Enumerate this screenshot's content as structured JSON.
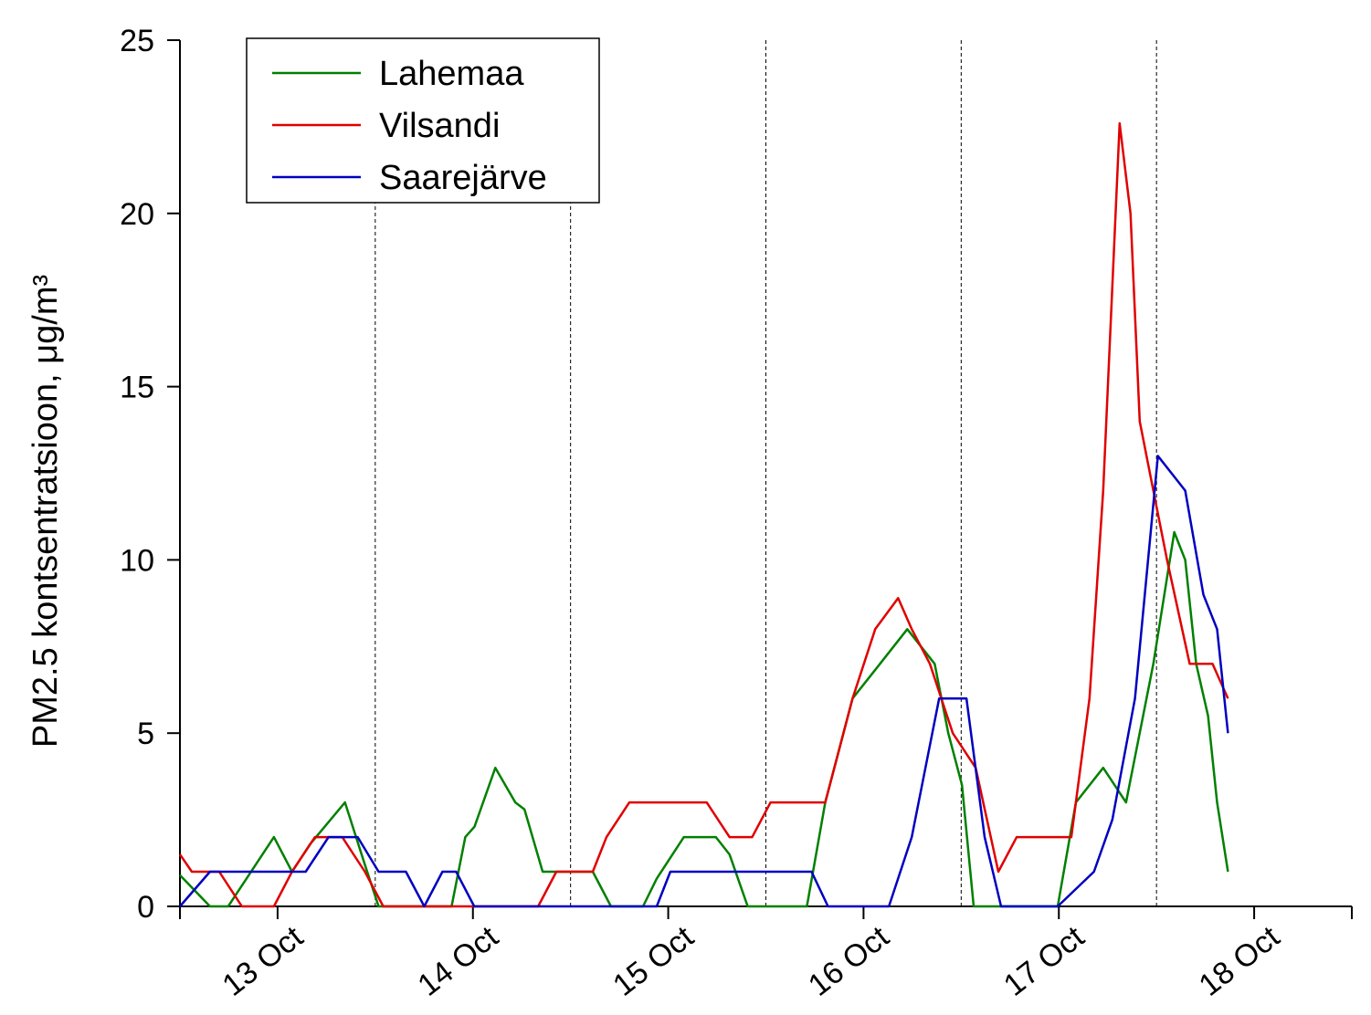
{
  "chart_data": {
    "type": "line",
    "y_label": "PM2.5 kontsentratsioon, μg/m³",
    "xlim": [
      12.5,
      18.5
    ],
    "xticks": [
      {
        "value": 13,
        "label": "13 Oct"
      },
      {
        "value": 14,
        "label": "14 Oct"
      },
      {
        "value": 15,
        "label": "15 Oct"
      },
      {
        "value": 16,
        "label": "16 Oct"
      },
      {
        "value": 17,
        "label": "17 Oct"
      },
      {
        "value": 18,
        "label": "18 Oct"
      }
    ],
    "dashed_lines": [
      13.5,
      14.5,
      15.5,
      16.5,
      17.5
    ],
    "ylim": [
      0,
      25
    ],
    "yticks": [
      0,
      5,
      10,
      15,
      20,
      25
    ],
    "legend": "upper left",
    "series": [
      {
        "name": "Lahemaa",
        "color": "#008000",
        "x": [
          12.5,
          12.654,
          12.747,
          12.841,
          12.981,
          13.074,
          13.167,
          13.345,
          13.447,
          13.517,
          13.891,
          13.961,
          14.008,
          14.115,
          14.217,
          14.264,
          14.357,
          14.614,
          14.707,
          14.871,
          14.941,
          15.08,
          15.244,
          15.314,
          15.407,
          15.71,
          15.804,
          15.944,
          16.084,
          16.224,
          16.364,
          16.434,
          16.504,
          16.564,
          16.994,
          17.087,
          17.227,
          17.344,
          17.484,
          17.591,
          17.647,
          17.703,
          17.764,
          17.81,
          17.866
        ],
        "values": [
          0.9,
          0,
          0,
          0.8,
          2,
          1,
          1.8,
          3,
          1.2,
          0,
          0,
          2,
          2.3,
          4,
          3,
          2.8,
          1,
          1,
          0,
          0,
          0.8,
          2,
          2,
          1.5,
          0,
          0,
          3,
          6,
          7,
          8,
          7,
          5,
          3.5,
          0,
          0,
          3,
          4,
          3,
          7,
          10.8,
          10,
          7,
          5.5,
          3,
          1
        ]
      },
      {
        "name": "Vilsandi",
        "color": "#e00000",
        "x": [
          12.5,
          12.561,
          12.701,
          12.817,
          12.981,
          13.074,
          13.191,
          13.331,
          13.447,
          13.541,
          14.334,
          14.427,
          14.614,
          14.684,
          14.801,
          15.197,
          15.314,
          15.43,
          15.524,
          15.804,
          15.944,
          16.06,
          16.177,
          16.247,
          16.34,
          16.457,
          16.574,
          16.69,
          16.784,
          17.064,
          17.157,
          17.227,
          17.311,
          17.367,
          17.414,
          17.484,
          17.554,
          17.67,
          17.787,
          17.866
        ],
        "values": [
          1.5,
          1,
          1,
          0,
          0,
          1,
          2,
          2,
          1,
          0,
          0,
          1,
          1,
          2,
          3,
          3,
          2,
          2,
          3,
          3,
          6,
          8,
          8.9,
          8,
          7,
          5,
          4,
          1,
          2,
          2,
          6,
          12,
          22.6,
          20,
          14,
          12,
          10,
          7,
          7,
          6
        ]
      },
      {
        "name": "Saarejärve",
        "color": "#0000c0",
        "x": [
          12.5,
          12.654,
          13.144,
          13.261,
          13.41,
          13.517,
          13.657,
          13.751,
          13.844,
          13.914,
          14.007,
          14.941,
          15.011,
          15.734,
          15.818,
          16.13,
          16.247,
          16.387,
          16.527,
          16.62,
          16.704,
          16.994,
          17.18,
          17.274,
          17.39,
          17.507,
          17.647,
          17.74,
          17.81,
          17.866
        ],
        "values": [
          0,
          1,
          1,
          2,
          2,
          1,
          1,
          0,
          1,
          1,
          0,
          0,
          1,
          1,
          0,
          0,
          2,
          6,
          6,
          2,
          0,
          0,
          1,
          2.5,
          6,
          13,
          12,
          9,
          8,
          5
        ]
      }
    ]
  }
}
